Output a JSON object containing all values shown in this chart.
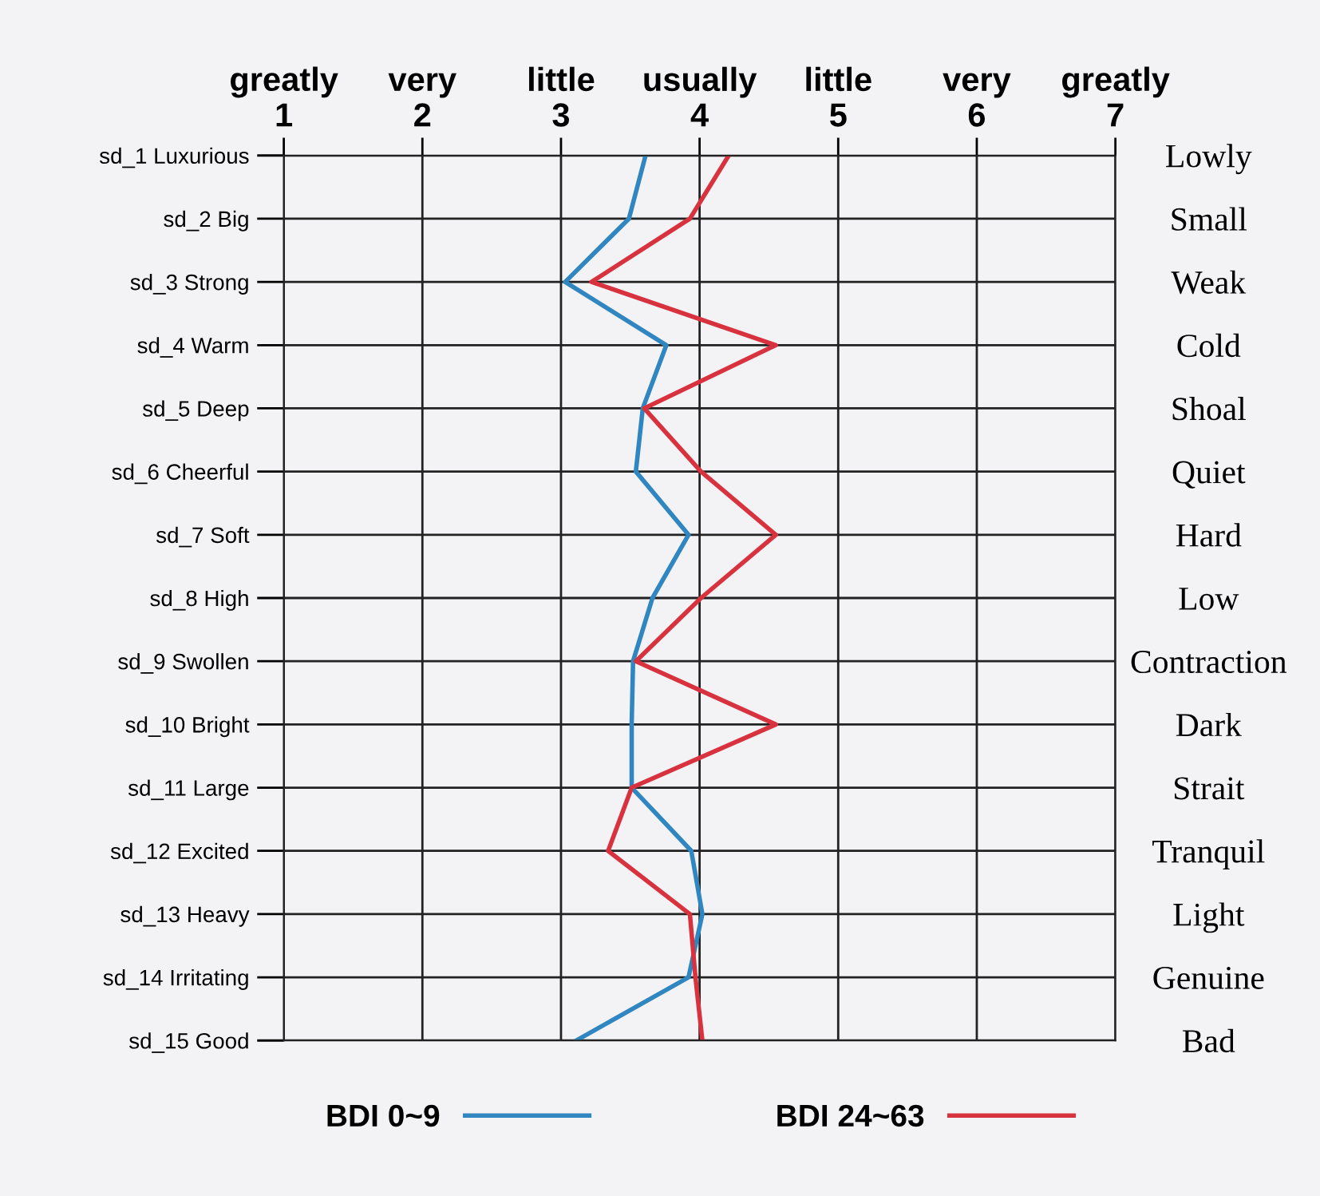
{
  "chart_data": {
    "type": "line",
    "orientation": "horizontal",
    "categories": [
      "sd_1 Luxurious",
      "sd_2 Big",
      "sd_3 Strong",
      "sd_4 Warm",
      "sd_5 Deep",
      "sd_6 Cheerful",
      "sd_7 Soft",
      "sd_8 High",
      "sd_9 Swollen",
      "sd_10 Bright",
      "sd_11 Large",
      "sd_12 Excited",
      "sd_13 Heavy",
      "sd_14 Irritating",
      "sd_15 Good"
    ],
    "y2_categories": [
      "Lowly",
      "Small",
      "Weak",
      "Cold",
      "Shoal",
      "Quiet",
      "Hard",
      "Low",
      "Contraction",
      "Dark",
      "Strait",
      "Tranquil",
      "Light",
      "Genuine",
      "Bad"
    ],
    "series": [
      {
        "name": "BDI 0~9",
        "color": "#2f86c0",
        "values": [
          3.61,
          3.49,
          3.03,
          3.76,
          3.59,
          3.54,
          3.92,
          3.66,
          3.52,
          3.51,
          3.51,
          3.94,
          4.02,
          3.92,
          3.11
        ]
      },
      {
        "name": "BDI 24~63",
        "color": "#d8323f",
        "values": [
          4.21,
          3.93,
          3.22,
          4.55,
          3.6,
          4.01,
          4.55,
          4.01,
          3.54,
          4.55,
          3.51,
          3.34,
          3.93,
          3.97,
          4.02
        ]
      }
    ],
    "xlim": [
      1,
      7
    ],
    "xticks": [
      1,
      2,
      3,
      4,
      5,
      6,
      7
    ],
    "annotations": [
      "greatly",
      "very",
      "little",
      "usually",
      "little",
      "very",
      "greatly"
    ],
    "grid": true,
    "legend": "bottom",
    "marker": "none",
    "line_style": "solid"
  }
}
